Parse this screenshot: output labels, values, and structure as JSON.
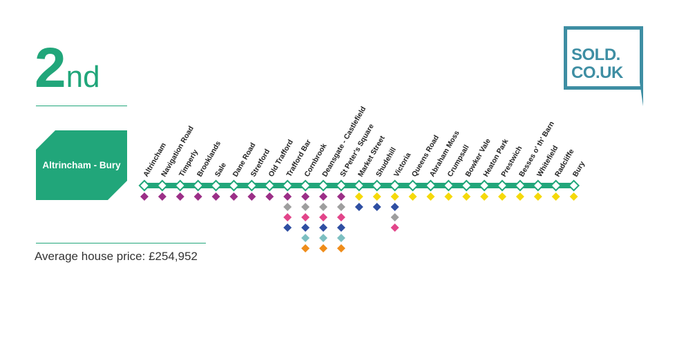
{
  "rank": {
    "number": "2",
    "suffix": "nd"
  },
  "line_name": "Altrincham - Bury",
  "average_price": "Average house price: £254,952",
  "logo": {
    "line1": "SOLD.",
    "line2": "CO.UK"
  },
  "colors": {
    "line": "#21a67a",
    "logo": "#3e8ea3",
    "purple": "#9b2f87",
    "gray": "#9e9e9e",
    "pink": "#e2458a",
    "blue": "#2f4fa2",
    "teal": "#7cbfc1",
    "orange": "#ef8d1b",
    "yellow": "#f5d90a"
  },
  "stations": [
    {
      "name": "Altrincham",
      "lines": [
        "purple"
      ]
    },
    {
      "name": "Navigation Road",
      "lines": [
        "purple"
      ]
    },
    {
      "name": "Timperly",
      "lines": [
        "purple"
      ]
    },
    {
      "name": "Brooklands",
      "lines": [
        "purple"
      ]
    },
    {
      "name": "Sale",
      "lines": [
        "purple"
      ]
    },
    {
      "name": "Dane Road",
      "lines": [
        "purple"
      ]
    },
    {
      "name": "Stretford",
      "lines": [
        "purple"
      ]
    },
    {
      "name": "Old Trafford",
      "lines": [
        "purple"
      ]
    },
    {
      "name": "Trafford Bar",
      "lines": [
        "purple",
        "gray",
        "pink",
        "blue"
      ]
    },
    {
      "name": "Cornbrook",
      "lines": [
        "purple",
        "gray",
        "pink",
        "blue",
        "teal",
        "orange"
      ]
    },
    {
      "name": "Deansgate - Castlefield",
      "lines": [
        "purple",
        "gray",
        "pink",
        "blue",
        "teal",
        "orange"
      ]
    },
    {
      "name": "St Peter's Square",
      "lines": [
        "purple",
        "gray",
        "pink",
        "blue",
        "teal",
        "orange"
      ]
    },
    {
      "name": "Market Street",
      "lines": [
        "yellow",
        "blue"
      ]
    },
    {
      "name": "Shudehill",
      "lines": [
        "yellow",
        "blue"
      ]
    },
    {
      "name": "Victoria",
      "lines": [
        "yellow",
        "blue",
        "gray",
        "pink"
      ]
    },
    {
      "name": "Queens Road",
      "lines": [
        "yellow"
      ]
    },
    {
      "name": "Abraham Moss",
      "lines": [
        "yellow"
      ]
    },
    {
      "name": "Crumpsall",
      "lines": [
        "yellow"
      ]
    },
    {
      "name": "Bowker Vale",
      "lines": [
        "yellow"
      ]
    },
    {
      "name": "Heaton Park",
      "lines": [
        "yellow"
      ]
    },
    {
      "name": "Prestwich",
      "lines": [
        "yellow"
      ]
    },
    {
      "name": "Besses o' th' Barn",
      "lines": [
        "yellow"
      ]
    },
    {
      "name": "Whitefield",
      "lines": [
        "yellow"
      ]
    },
    {
      "name": "Radcliffe",
      "lines": [
        "yellow"
      ]
    },
    {
      "name": "Bury",
      "lines": [
        "yellow"
      ]
    }
  ]
}
